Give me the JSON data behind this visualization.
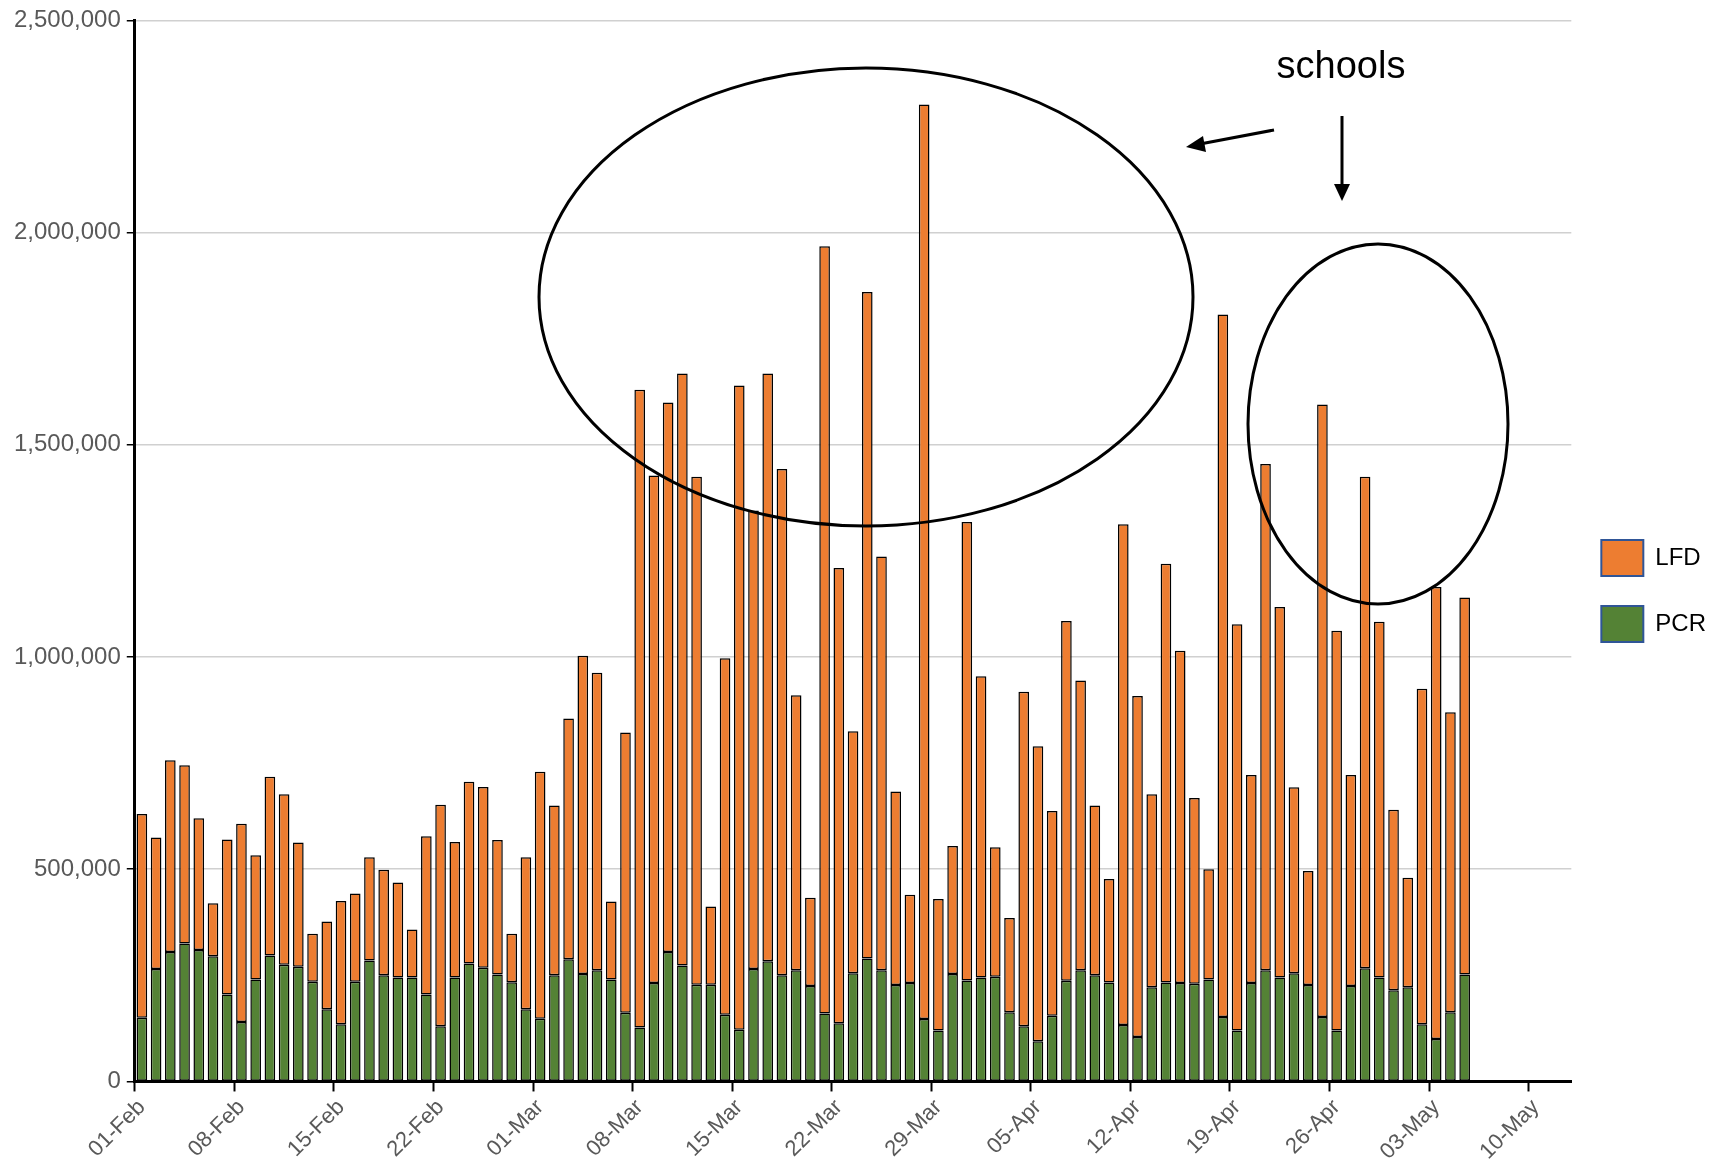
{
  "chart_data": {
    "type": "bar",
    "stacked": true,
    "categories": [
      "01-Feb",
      null,
      null,
      null,
      null,
      null,
      null,
      "08-Feb",
      null,
      null,
      null,
      null,
      null,
      null,
      "15-Feb",
      null,
      null,
      null,
      null,
      null,
      null,
      "22-Feb",
      null,
      null,
      null,
      null,
      null,
      null,
      "01-Mar",
      null,
      null,
      null,
      null,
      null,
      null,
      "08-Mar",
      null,
      null,
      null,
      null,
      null,
      null,
      "15-Mar",
      null,
      null,
      null,
      null,
      null,
      null,
      "22-Mar",
      null,
      null,
      null,
      null,
      null,
      null,
      "29-Mar",
      null,
      null,
      null,
      null,
      null,
      null,
      "05-Apr",
      null,
      null,
      null,
      null,
      null,
      null,
      "12-Apr",
      null,
      null,
      null,
      null,
      null,
      null,
      "19-Apr",
      null,
      null,
      null,
      null,
      null,
      null,
      "26-Apr",
      null,
      null,
      null,
      null,
      null,
      null,
      "03-May",
      null,
      null,
      null,
      null,
      null,
      null,
      "10-May",
      null,
      null
    ],
    "series": [
      {
        "name": "PCR",
        "color": "#548235",
        "values": [
          150000,
          265000,
          305000,
          325000,
          310000,
          295000,
          205000,
          140000,
          240000,
          297000,
          275000,
          270000,
          235000,
          170000,
          135000,
          235000,
          285000,
          250000,
          245000,
          245000,
          205000,
          130000,
          245000,
          278000,
          268000,
          252000,
          234000,
          170000,
          148000,
          250000,
          288000,
          253000,
          262000,
          240000,
          162000,
          127000,
          232000,
          305000,
          273000,
          228000,
          228000,
          157000,
          122000,
          265000,
          283000,
          250000,
          262000,
          225000,
          160000,
          137000,
          255000,
          290000,
          262000,
          227000,
          232000,
          147000,
          120000,
          253000,
          238000,
          245000,
          247000,
          163000,
          130000,
          95000,
          155000,
          237000,
          262000,
          250000,
          233000,
          133000,
          105000,
          222000,
          233000,
          232000,
          230000,
          240000,
          152000,
          120000,
          232000,
          262000,
          245000,
          255000,
          227000,
          152000,
          120000,
          225000,
          267000,
          245000,
          215000,
          222000,
          135000,
          100000,
          163000,
          252000,
          null,
          null,
          null,
          null,
          null,
          null,
          null
        ]
      },
      {
        "name": "LFD",
        "color": "#ed7d31",
        "values": [
          480000,
          310000,
          452000,
          420000,
          310000,
          125000,
          365000,
          467000,
          293000,
          421000,
          402000,
          293000,
          113000,
          207000,
          290000,
          208000,
          243000,
          249000,
          224000,
          113000,
          373000,
          522000,
          319000,
          428000,
          426000,
          317000,
          114000,
          358000,
          582000,
          400000,
          567000,
          750000,
          701000,
          184000,
          660000,
          1503000,
          1196000,
          1295000,
          1395000,
          1197000,
          184000,
          840000,
          1518000,
          1080000,
          1385000,
          1193000,
          648000,
          208000,
          1808000,
          1073000,
          570000,
          1570000,
          975000,
          456000,
          208000,
          2155000,
          310000,
          302000,
          1080000,
          710000,
          305000,
          222000,
          788000,
          695000,
          482000,
          848000,
          683000,
          400000,
          244000,
          1180000,
          803000,
          455000,
          987000,
          783000,
          438000,
          260000,
          1655000,
          957000,
          490000,
          1193000,
          873000,
          438000,
          269000,
          1443000,
          942000,
          497000,
          1158000,
          838000,
          425000,
          258000,
          790000,
          1065000,
          707000,
          888000,
          null,
          null,
          null,
          null,
          null,
          null,
          null
        ]
      }
    ],
    "ylim": [
      0,
      2500000
    ],
    "yticks": [
      0,
      {
        "value": 500000,
        "label": "500,000"
      },
      {
        "value": 1000000,
        "label": "1,000,000"
      },
      {
        "value": 1500000,
        "label": "1,500,000"
      },
      {
        "value": 2000000,
        "label": "2,000,000"
      },
      {
        "value": 2500000,
        "label": "2,500,000"
      }
    ],
    "grid": "y",
    "legend": "right",
    "annotations": [
      "schools"
    ]
  }
}
